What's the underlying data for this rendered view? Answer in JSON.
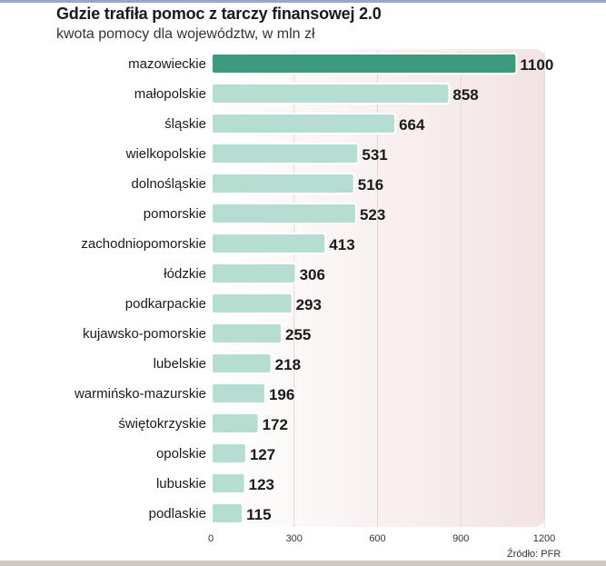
{
  "title": "Gdzie trafiła pomoc z tarczy finansowej 2.0",
  "subtitle": "kwota pomocy dla województw, w mln zł",
  "source": "Źródło: PFR",
  "colors": {
    "highlight_bar": "#3d9a7e",
    "bar": "#b5ddd1",
    "plot_background": "#f7eeee"
  },
  "chart_data": {
    "type": "bar",
    "orientation": "horizontal",
    "categories": [
      "mazowieckie",
      "małopolskie",
      "śląskie",
      "wielkopolskie",
      "dolnośląskie",
      "pomorskie",
      "zachodniopomorskie",
      "łódzkie",
      "podkarpackie",
      "kujawsko-pomorskie",
      "lubelskie",
      "warmińsko-mazurskie",
      "świętokrzyskie",
      "opolskie",
      "lubuskie",
      "podlaskie"
    ],
    "values": [
      1100,
      858,
      664,
      531,
      516,
      523,
      413,
      306,
      293,
      255,
      218,
      196,
      172,
      127,
      123,
      115
    ],
    "value_labels": [
      "1100",
      "858",
      "664",
      "531",
      "516",
      "523",
      "413",
      "306",
      "293",
      "255",
      "218",
      "196",
      "172",
      "127",
      "123",
      "115"
    ],
    "xticks": [
      0,
      300,
      600,
      900,
      1200
    ],
    "xtick_labels": [
      "0",
      "300",
      "600",
      "900",
      "1200"
    ],
    "xlim": [
      0,
      1200
    ],
    "grid": true,
    "highlighted_category": "mazowieckie"
  }
}
